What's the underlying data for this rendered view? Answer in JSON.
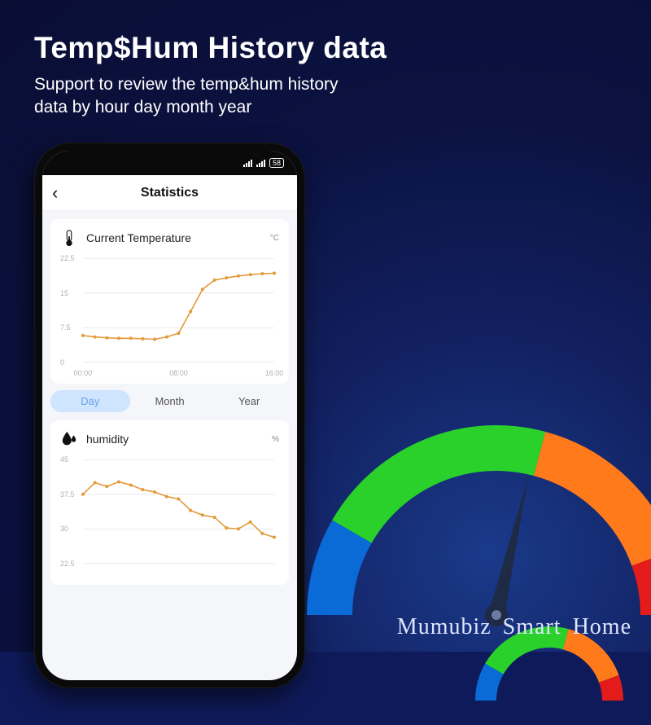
{
  "headline": "Temp$Hum History data",
  "subhead_l1": "Support to review the temp&hum history",
  "subhead_l2": "data by hour day month year",
  "brand": "Mumubiz Smart Home",
  "colors": {
    "bg_outer": "#0a0e35",
    "bg_inner": "#1a3a8a",
    "line": "#e49a3a",
    "marker": "#e49a3a",
    "grid": "#dedede",
    "ylabel": "#b0b0b0",
    "tab_active_bg": "#cfe4ff",
    "tab_active_fg": "#6aa5e8"
  },
  "phone": {
    "status": {
      "battery": "58"
    },
    "nav": {
      "back_glyph": "‹",
      "title": "Statistics"
    },
    "temp_card": {
      "title": "Current Temperature",
      "unit": "°C",
      "y_ticks": [
        0,
        7.5,
        15,
        22.5
      ],
      "ylim": [
        0,
        22.5
      ],
      "x_ticks": [
        "00:00",
        "08:00",
        "16:00"
      ],
      "x_count": 17,
      "values": [
        5.8,
        5.5,
        5.3,
        5.2,
        5.2,
        5.1,
        5.0,
        5.5,
        6.3,
        11.0,
        15.8,
        17.8,
        18.3,
        18.7,
        19.0,
        19.2,
        19.3
      ]
    },
    "range": {
      "options": [
        "Day",
        "Month",
        "Year"
      ],
      "active": 0
    },
    "hum_card": {
      "title": "humidity",
      "unit": "%",
      "y_ticks": [
        22.5,
        30,
        37.5,
        45
      ],
      "ylim": [
        22.5,
        45
      ],
      "x_count": 17,
      "values": [
        37.5,
        40.0,
        39.2,
        40.2,
        39.5,
        38.5,
        38.0,
        37.0,
        36.5,
        34.0,
        33.0,
        32.5,
        30.2,
        30.0,
        31.5,
        29.0,
        28.2
      ]
    }
  },
  "gauge": {
    "segments": [
      {
        "from": 180,
        "to": 210,
        "color": "#0a6ad6"
      },
      {
        "from": 210,
        "to": 285,
        "color": "#2bd12b"
      },
      {
        "from": 285,
        "to": 340,
        "color": "#ff7a1a"
      },
      {
        "from": 340,
        "to": 360,
        "color": "#e31b1b"
      }
    ],
    "needle_angle": 283,
    "stroke_width_large": 56,
    "stroke_width_small": 26
  }
}
